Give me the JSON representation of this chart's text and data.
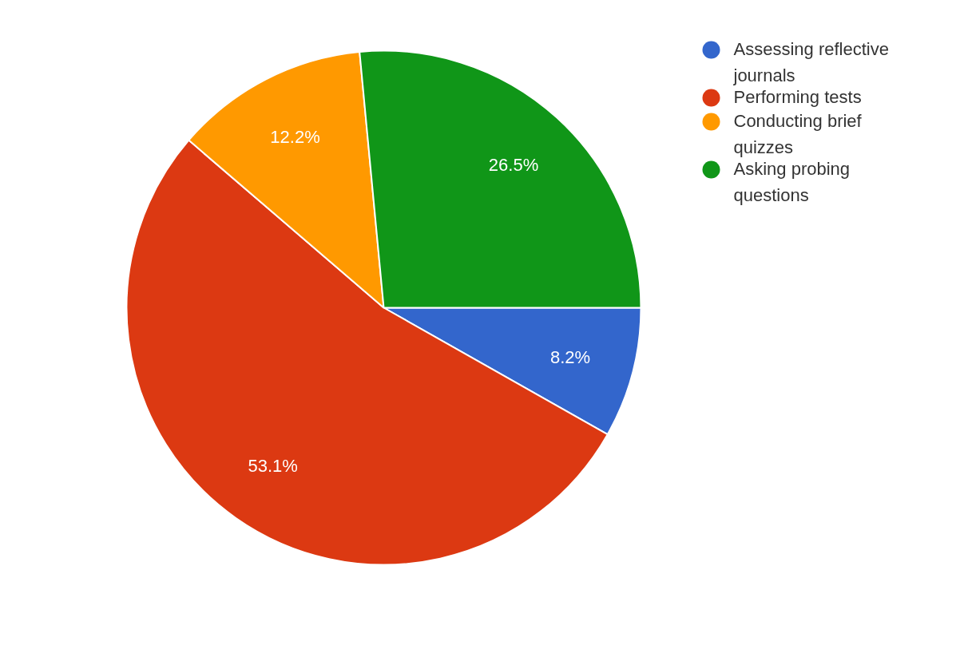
{
  "chart_data": {
    "type": "pie",
    "categories": [
      "Assessing reflective journals",
      "Performing tests",
      "Conducting brief quizzes",
      "Asking probing questions"
    ],
    "values": [
      8.2,
      53.1,
      12.2,
      26.5
    ],
    "colors": [
      "#3366cc",
      "#dc3912",
      "#ff9900",
      "#109618"
    ],
    "value_labels": [
      "8.2%",
      "53.1%",
      "12.2%",
      "26.5%"
    ],
    "legend": "right"
  }
}
